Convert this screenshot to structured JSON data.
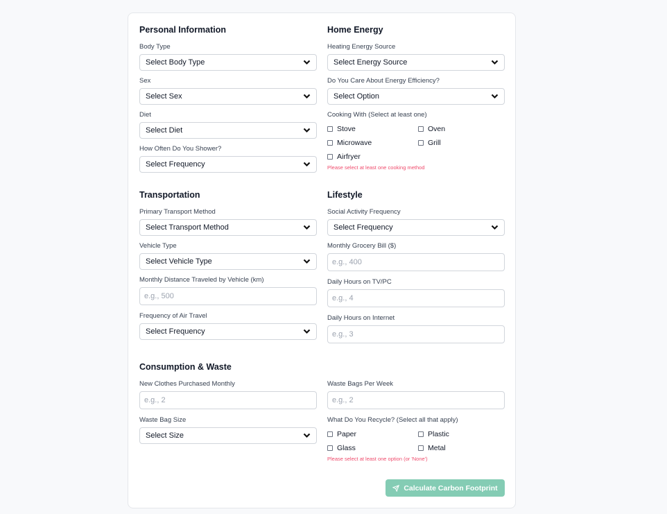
{
  "sections": [
    [
      {
        "title": "Personal Information",
        "fields": [
          {
            "type": "select",
            "label": "Body Type",
            "value": "Select Body Type"
          },
          {
            "type": "select",
            "label": "Sex",
            "value": "Select Sex"
          },
          {
            "type": "select",
            "label": "Diet",
            "value": "Select Diet"
          },
          {
            "type": "select",
            "label": "How Often Do You Shower?",
            "value": "Select Frequency"
          }
        ]
      },
      {
        "title": "Home Energy",
        "fields": [
          {
            "type": "select",
            "label": "Heating Energy Source",
            "value": "Select Energy Source"
          },
          {
            "type": "select",
            "label": "Do You Care About Energy Efficiency?",
            "value": "Select Option"
          },
          {
            "type": "checks",
            "label": "Cooking With (Select at least one)",
            "options": [
              "Stove",
              "Oven",
              "Microwave",
              "Grill",
              "Airfryer"
            ],
            "error": "Please select at least one cooking method"
          }
        ]
      }
    ],
    [
      {
        "title": "Transportation",
        "fields": [
          {
            "type": "select",
            "label": "Primary Transport Method",
            "value": "Select Transport Method"
          },
          {
            "type": "select",
            "label": "Vehicle Type",
            "value": "Select Vehicle Type"
          },
          {
            "type": "input",
            "label": "Monthly Distance Traveled by Vehicle (km)",
            "placeholder": "e.g., 500"
          },
          {
            "type": "select",
            "label": "Frequency of Air Travel",
            "value": "Select Frequency"
          }
        ]
      },
      {
        "title": "Lifestyle",
        "fields": [
          {
            "type": "select",
            "label": "Social Activity Frequency",
            "value": "Select Frequency"
          },
          {
            "type": "input",
            "label": "Monthly Grocery Bill ($)",
            "placeholder": "e.g., 400"
          },
          {
            "type": "input",
            "label": "Daily Hours on TV/PC",
            "placeholder": "e.g., 4"
          },
          {
            "type": "input",
            "label": "Daily Hours on Internet",
            "placeholder": "e.g., 3"
          }
        ]
      }
    ],
    [
      {
        "title": "Consumption & Waste",
        "fields": [
          {
            "type": "input",
            "label": "New Clothes Purchased Monthly",
            "placeholder": "e.g., 2"
          },
          {
            "type": "select",
            "label": "Waste Bag Size",
            "value": "Select Size"
          }
        ]
      },
      {
        "title": "",
        "fields": [
          {
            "type": "input",
            "label": "Waste Bags Per Week",
            "placeholder": "e.g., 2"
          },
          {
            "type": "checks",
            "label": "What Do You Recycle? (Select all that apply)",
            "options": [
              "Paper",
              "Plastic",
              "Glass",
              "Metal"
            ],
            "error": "Please select at least one option (or 'None')"
          }
        ]
      }
    ]
  ],
  "submit": {
    "label": "Calculate Carbon Footprint",
    "icon": "send-icon"
  },
  "colors": {
    "button": "#84ccb4",
    "error": "#ef4b6c"
  }
}
